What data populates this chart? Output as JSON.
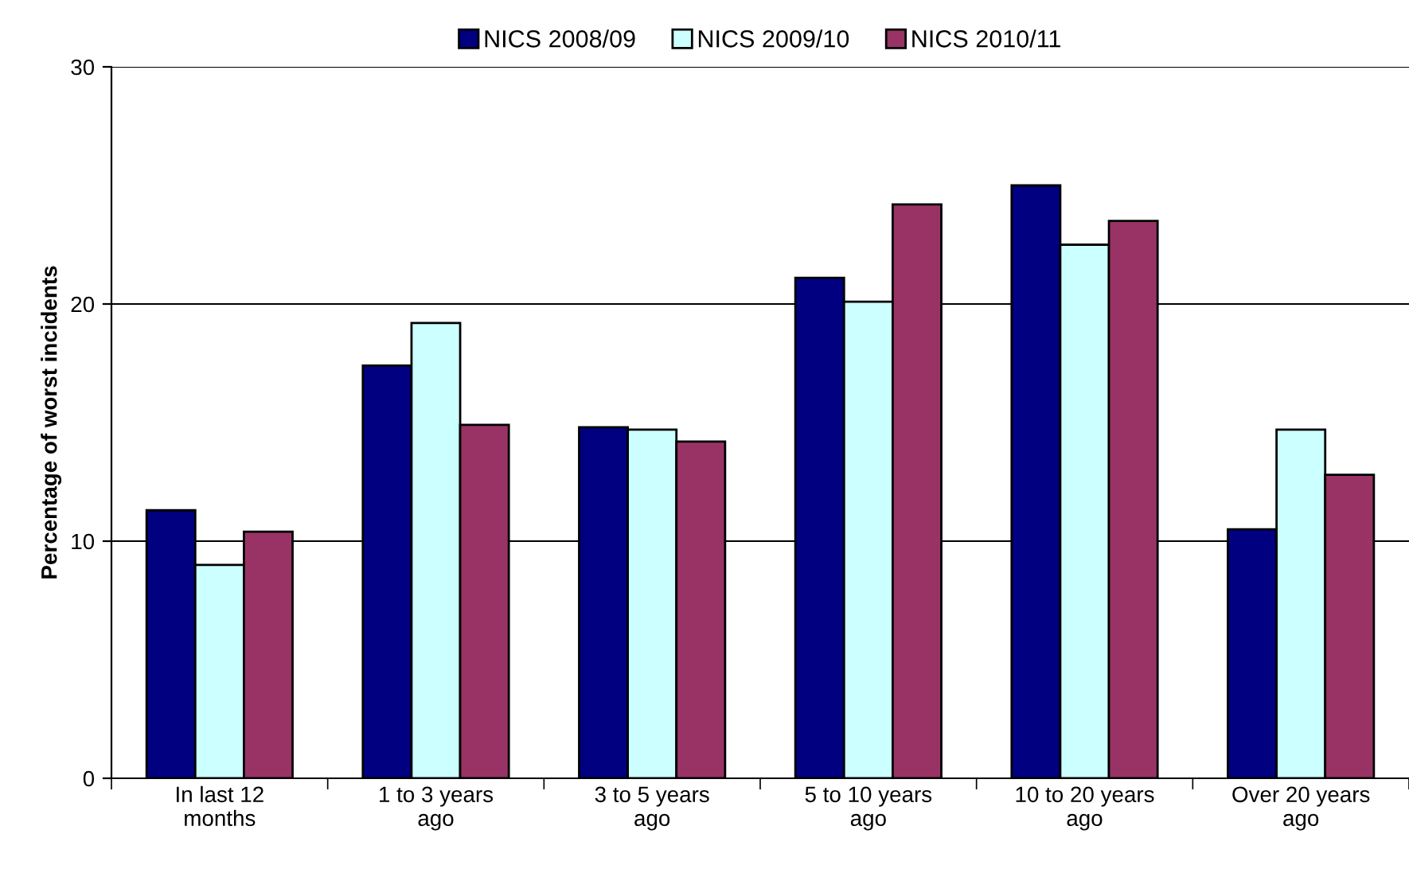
{
  "chart_data": {
    "type": "bar",
    "categories": [
      "In last 12\nmonths",
      "1 to 3 years\nago",
      "3 to 5 years\nago",
      "5 to 10 years\nago",
      "10 to 20 years\nago",
      "Over 20 years\nago"
    ],
    "ylabel": "Percentage of worst incidents",
    "series": [
      {
        "name": "NICS 2008/09",
        "color": "#000080",
        "values": [
          11.3,
          17.4,
          14.8,
          21.1,
          25.0,
          10.5
        ]
      },
      {
        "name": "NICS 2009/10",
        "color": "#ccffff",
        "values": [
          9.0,
          19.2,
          14.7,
          20.1,
          22.5,
          14.7
        ]
      },
      {
        "name": "NICS 2010/11",
        "color": "#993366",
        "values": [
          10.4,
          14.9,
          14.2,
          24.2,
          23.5,
          12.8
        ]
      }
    ],
    "ylim": [
      0,
      30
    ],
    "yticks": [
      0,
      10,
      20,
      30
    ],
    "grid": "y",
    "legend": "top"
  }
}
